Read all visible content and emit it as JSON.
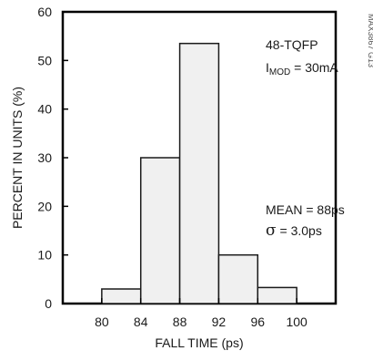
{
  "chart_data": {
    "type": "bar",
    "title": "",
    "xlabel": "FALL TIME (ps)",
    "ylabel": "PERCENT IN UNITS (%)",
    "xlim": [
      76,
      104
    ],
    "ylim": [
      0,
      60
    ],
    "x_ticks": [
      "80",
      "84",
      "88",
      "92",
      "96",
      "100"
    ],
    "x_tick_values": [
      80,
      84,
      88,
      92,
      96,
      100
    ],
    "y_ticks": [
      "0",
      "10",
      "20",
      "30",
      "40",
      "50",
      "60"
    ],
    "y_tick_values": [
      0,
      10,
      20,
      30,
      40,
      50,
      60
    ],
    "bins": [
      {
        "x0": 80,
        "x1": 84,
        "value": 3
      },
      {
        "x0": 84,
        "x1": 88,
        "value": 30
      },
      {
        "x0": 88,
        "x1": 92,
        "value": 53.5
      },
      {
        "x0": 92,
        "x1": 96,
        "value": 10
      },
      {
        "x0": 96,
        "x1": 100,
        "value": 3.3
      }
    ],
    "annotations": {
      "package": "48-TQFP",
      "imod_main": "I",
      "imod_sub": "MOD",
      "imod_value": " = 30mA",
      "mean": "MEAN = 88ps",
      "sigma_symbol": "σ",
      "sigma_value": " = 3.0ps"
    },
    "side_id": "MAX3867 G13",
    "grid": false,
    "legend": "none",
    "colors": {
      "bar_fill": "#f0f0f0",
      "bar_stroke": "#1a1a1a",
      "frame": "#000000"
    }
  }
}
